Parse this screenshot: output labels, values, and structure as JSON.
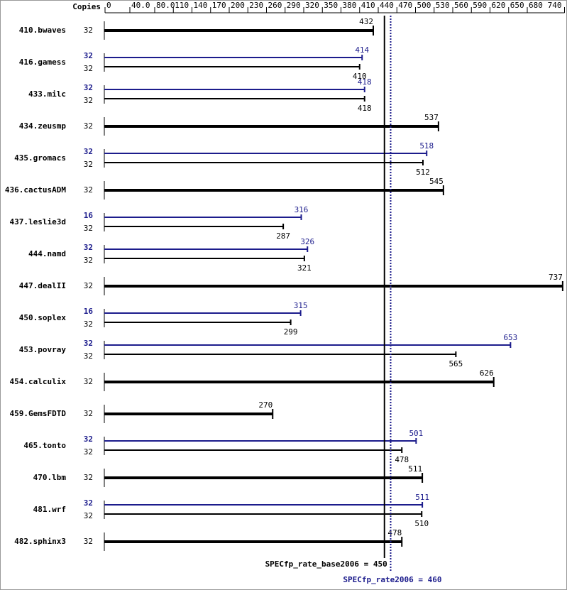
{
  "chart_data": {
    "type": "spec-bar",
    "copies_label": "Copies",
    "categories": [
      "410.bwaves",
      "416.gamess",
      "433.milc",
      "434.zeusmp",
      "435.gromacs",
      "436.cactusADM",
      "437.leslie3d",
      "444.namd",
      "447.dealII",
      "450.soplex",
      "453.povray",
      "454.calculix",
      "459.GemsFDTD",
      "465.tonto",
      "470.lbm",
      "481.wrf",
      "482.sphinx3"
    ],
    "series": [
      {
        "name": "base",
        "color": "#000000",
        "copies": [
          32,
          32,
          32,
          32,
          32,
          32,
          32,
          32,
          32,
          32,
          32,
          32,
          32,
          32,
          32,
          32,
          32
        ],
        "values": [
          432,
          410,
          418,
          537,
          512,
          545,
          287,
          321,
          737,
          299,
          565,
          626,
          270,
          478,
          511,
          510,
          478
        ]
      },
      {
        "name": "peak",
        "color": "#1c1c8c",
        "copies": [
          null,
          32,
          32,
          null,
          32,
          null,
          16,
          32,
          null,
          16,
          32,
          null,
          null,
          32,
          null,
          32,
          null
        ],
        "values": [
          null,
          414,
          418,
          null,
          518,
          null,
          316,
          326,
          null,
          315,
          653,
          null,
          null,
          501,
          null,
          511,
          null
        ]
      }
    ],
    "xlim": [
      0,
      740
    ],
    "xticks": [
      0,
      {
        "value": 40,
        "label": "40.0"
      },
      {
        "value": 80,
        "label": "80.0"
      },
      110,
      140,
      170,
      200,
      230,
      260,
      290,
      320,
      350,
      380,
      410,
      440,
      470,
      500,
      530,
      560,
      590,
      620,
      650,
      680,
      740
    ],
    "reference_lines": [
      {
        "label": "SPECfp_rate_base2006 = 450",
        "value": 450,
        "color": "#000000",
        "style": "solid"
      },
      {
        "label": "SPECfp_rate2006 = 460",
        "value": 460,
        "color": "#1c1c8c",
        "style": "dotted"
      }
    ]
  }
}
